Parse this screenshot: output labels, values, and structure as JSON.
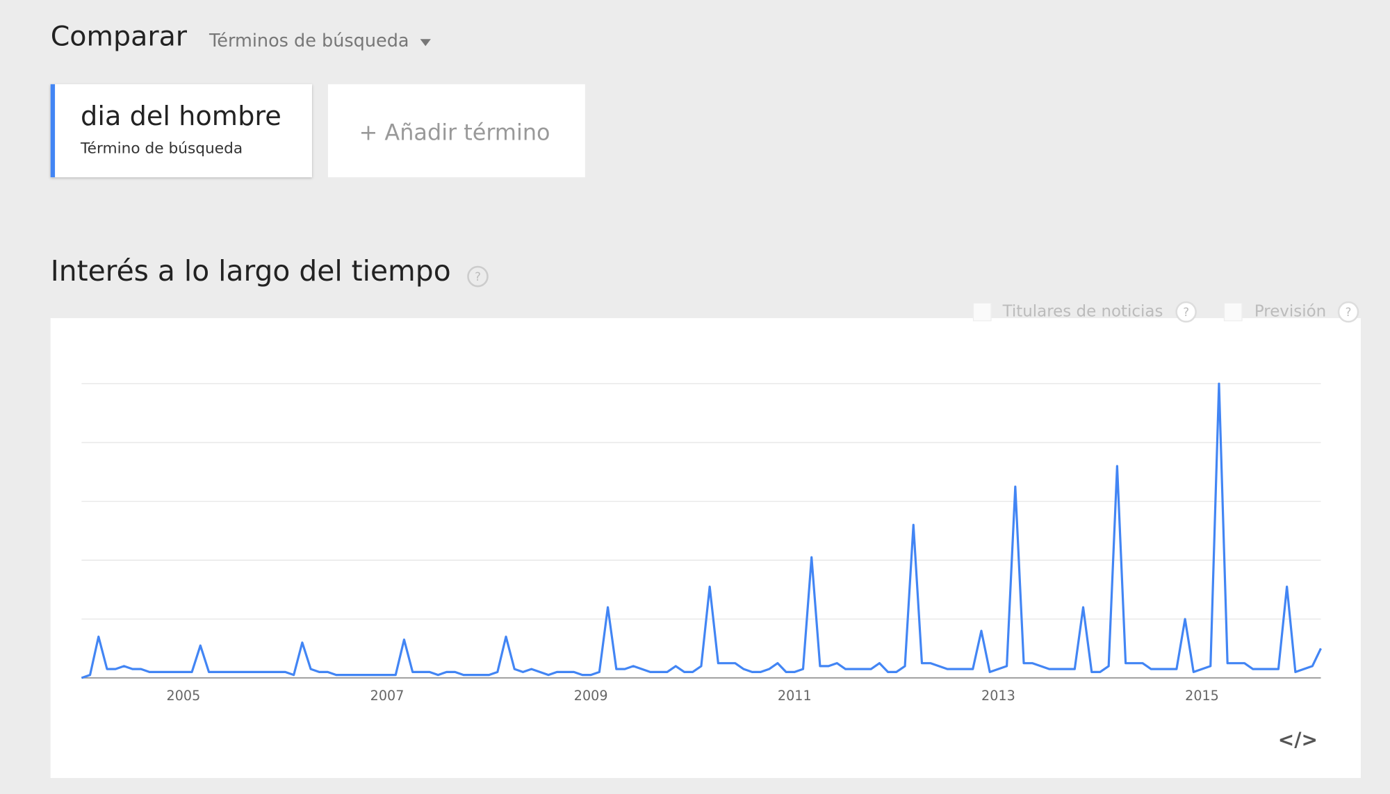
{
  "ui": {
    "compare": "Comparar",
    "compare_mode": "Términos de búsqueda",
    "term_type": "Término de búsqueda",
    "add_term": "+ Añadir término",
    "help": "?",
    "news": "Titulares de noticias",
    "forecast": "Previsión",
    "embed": "</>"
  },
  "chart_data": {
    "type": "line",
    "title": "Interés a lo largo del tiempo",
    "categories": [
      null,
      null,
      null,
      null,
      null,
      null,
      null,
      null,
      null,
      null,
      null,
      null,
      "2005",
      null,
      null,
      null,
      null,
      null,
      null,
      null,
      null,
      null,
      null,
      null,
      null,
      null,
      null,
      null,
      null,
      null,
      null,
      null,
      null,
      null,
      null,
      null,
      "2007",
      null,
      null,
      null,
      null,
      null,
      null,
      null,
      null,
      null,
      null,
      null,
      null,
      null,
      null,
      null,
      null,
      null,
      null,
      null,
      null,
      null,
      null,
      null,
      "2009",
      null,
      null,
      null,
      null,
      null,
      null,
      null,
      null,
      null,
      null,
      null,
      null,
      null,
      null,
      null,
      null,
      null,
      null,
      null,
      null,
      null,
      null,
      null,
      "2011",
      null,
      null,
      null,
      null,
      null,
      null,
      null,
      null,
      null,
      null,
      null,
      null,
      null,
      null,
      null,
      null,
      null,
      null,
      null,
      null,
      null,
      null,
      null,
      "2013",
      null,
      null,
      null,
      null,
      null,
      null,
      null,
      null,
      null,
      null,
      null,
      null,
      null,
      null,
      null,
      null,
      null,
      null,
      null,
      null,
      null,
      null,
      null,
      "2015",
      null,
      null,
      null,
      null,
      null,
      null,
      null,
      null,
      null,
      null,
      null,
      null,
      null,
      null
    ],
    "series": [
      {
        "name": "dia del hombre",
        "color": "#4285f4",
        "values": [
          0,
          1,
          14,
          3,
          3,
          4,
          3,
          3,
          2,
          2,
          2,
          2,
          2,
          2,
          11,
          2,
          2,
          2,
          2,
          2,
          2,
          2,
          2,
          2,
          2,
          1,
          12,
          3,
          2,
          2,
          1,
          1,
          1,
          1,
          1,
          1,
          1,
          1,
          13,
          2,
          2,
          2,
          1,
          2,
          2,
          1,
          1,
          1,
          1,
          2,
          14,
          3,
          2,
          3,
          2,
          1,
          2,
          2,
          2,
          1,
          1,
          2,
          24,
          3,
          3,
          4,
          3,
          2,
          2,
          2,
          4,
          2,
          2,
          4,
          31,
          5,
          5,
          5,
          3,
          2,
          2,
          3,
          5,
          2,
          2,
          3,
          41,
          4,
          4,
          5,
          3,
          3,
          3,
          3,
          5,
          2,
          2,
          4,
          52,
          5,
          5,
          4,
          3,
          3,
          3,
          3,
          16,
          2,
          3,
          4,
          65,
          5,
          5,
          4,
          3,
          3,
          3,
          3,
          24,
          2,
          2,
          4,
          72,
          5,
          5,
          5,
          3,
          3,
          3,
          3,
          20,
          2,
          3,
          4,
          100,
          5,
          5,
          5,
          3,
          3,
          3,
          3,
          31,
          2,
          3,
          4,
          10
        ]
      }
    ],
    "ylim": [
      0,
      100
    ],
    "yticks": [
      0,
      20,
      40,
      60,
      80,
      100
    ],
    "grid": true
  }
}
